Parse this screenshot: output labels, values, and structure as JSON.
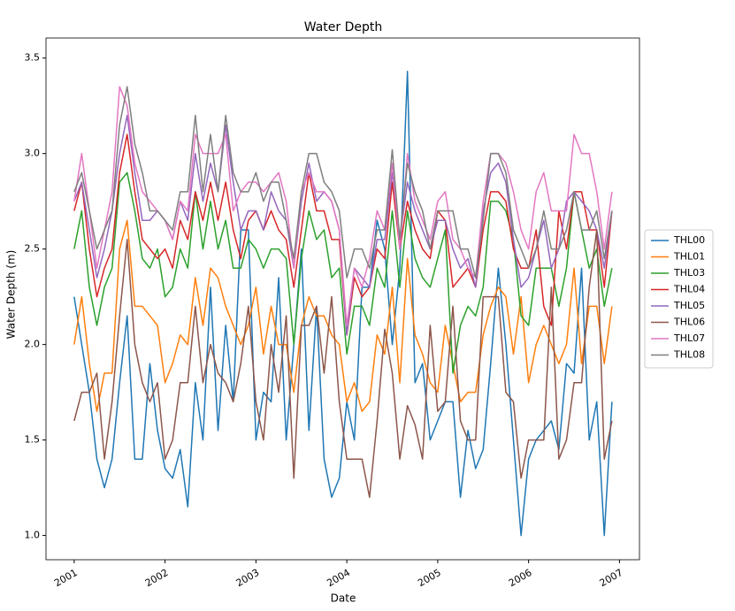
{
  "chart_data": {
    "type": "line",
    "title": "Water Depth",
    "x_label": "Date",
    "y_label": "Water Depth (m)",
    "x": [
      2001,
      2001.083,
      2001.167,
      2001.25,
      2001.333,
      2001.417,
      2001.5,
      2001.583,
      2001.667,
      2001.75,
      2001.833,
      2001.917,
      2002,
      2002.083,
      2002.167,
      2002.25,
      2002.333,
      2002.417,
      2002.5,
      2002.583,
      2002.667,
      2002.75,
      2002.833,
      2002.917,
      2003,
      2003.083,
      2003.167,
      2003.25,
      2003.333,
      2003.417,
      2003.5,
      2003.583,
      2003.667,
      2003.75,
      2003.833,
      2003.917,
      2004,
      2004.083,
      2004.167,
      2004.25,
      2004.333,
      2004.417,
      2004.5,
      2004.583,
      2004.667,
      2004.75,
      2004.833,
      2004.917,
      2005,
      2005.083,
      2005.167,
      2005.25,
      2005.333,
      2005.417,
      2005.5,
      2005.583,
      2005.667,
      2005.75,
      2005.833,
      2005.917,
      2006,
      2006.083,
      2006.167,
      2006.25,
      2006.333,
      2006.417,
      2006.5,
      2006.583,
      2006.667,
      2006.75,
      2006.833,
      2006.917
    ],
    "series": [
      {
        "name": "THL00",
        "color": "#1f77b4",
        "values": [
          2.25,
          2.0,
          1.75,
          1.4,
          1.25,
          1.4,
          1.8,
          2.15,
          1.4,
          1.4,
          1.9,
          1.55,
          1.35,
          1.3,
          1.45,
          1.15,
          1.8,
          1.5,
          2.3,
          1.55,
          2.1,
          1.7,
          2.6,
          2.6,
          1.5,
          1.75,
          1.7,
          2.35,
          1.5,
          2.0,
          2.5,
          1.55,
          2.2,
          1.4,
          1.2,
          1.3,
          1.7,
          1.5,
          2.3,
          2.3,
          2.65,
          2.5,
          2.0,
          2.4,
          3.43,
          1.8,
          1.9,
          1.5,
          1.6,
          1.7,
          1.7,
          1.2,
          1.55,
          1.35,
          1.45,
          1.9,
          2.4,
          2.0,
          1.5,
          1.0,
          1.4,
          1.5,
          1.55,
          1.6,
          1.45,
          1.9,
          1.85,
          2.4,
          1.5,
          1.7,
          1.0,
          1.7
        ]
      },
      {
        "name": "THL01",
        "color": "#ff7f0e",
        "values": [
          2.0,
          2.25,
          1.9,
          1.65,
          1.85,
          1.85,
          2.5,
          2.65,
          2.2,
          2.2,
          2.15,
          2.1,
          1.8,
          1.9,
          2.05,
          2.0,
          2.35,
          2.1,
          2.4,
          2.35,
          2.2,
          2.1,
          2.0,
          2.1,
          2.3,
          1.95,
          2.2,
          2.0,
          2.0,
          1.75,
          2.1,
          2.25,
          2.15,
          2.15,
          2.05,
          2.0,
          1.7,
          1.8,
          1.65,
          1.7,
          2.05,
          1.95,
          2.3,
          1.8,
          2.45,
          2.05,
          1.95,
          1.8,
          1.75,
          2.1,
          1.9,
          1.7,
          1.75,
          1.75,
          2.05,
          2.2,
          2.3,
          2.25,
          1.95,
          2.25,
          1.8,
          2.0,
          2.1,
          2.0,
          1.9,
          2.0,
          2.4,
          1.9,
          2.2,
          2.2,
          1.9,
          2.2
        ]
      },
      {
        "name": "THL03",
        "color": "#2ca02c",
        "values": [
          2.5,
          2.7,
          2.3,
          2.1,
          2.3,
          2.4,
          2.85,
          2.9,
          2.7,
          2.45,
          2.4,
          2.5,
          2.25,
          2.3,
          2.5,
          2.4,
          2.8,
          2.5,
          2.75,
          2.5,
          2.65,
          2.4,
          2.4,
          2.55,
          2.5,
          2.4,
          2.5,
          2.5,
          2.45,
          2.0,
          2.45,
          2.7,
          2.55,
          2.6,
          2.35,
          2.4,
          1.95,
          2.2,
          2.2,
          2.1,
          2.4,
          2.3,
          2.7,
          2.3,
          2.7,
          2.45,
          2.35,
          2.3,
          2.45,
          2.6,
          1.85,
          2.1,
          2.2,
          2.15,
          2.3,
          2.75,
          2.75,
          2.7,
          2.55,
          2.15,
          2.1,
          2.4,
          2.4,
          2.4,
          2.2,
          2.4,
          2.8,
          2.6,
          2.4,
          2.5,
          2.2,
          2.4
        ]
      },
      {
        "name": "THL04",
        "color": "#d62728",
        "values": [
          2.7,
          2.85,
          2.5,
          2.25,
          2.4,
          2.5,
          2.9,
          3.1,
          2.8,
          2.55,
          2.5,
          2.45,
          2.5,
          2.4,
          2.65,
          2.55,
          2.8,
          2.65,
          2.85,
          2.65,
          2.85,
          2.6,
          2.45,
          2.65,
          2.7,
          2.6,
          2.7,
          2.6,
          2.55,
          2.3,
          2.6,
          2.9,
          2.7,
          2.7,
          2.55,
          2.55,
          2.05,
          2.35,
          2.25,
          2.3,
          2.5,
          2.45,
          2.85,
          2.5,
          2.75,
          2.6,
          2.5,
          2.45,
          2.7,
          2.65,
          2.3,
          2.35,
          2.4,
          2.3,
          2.6,
          2.8,
          2.8,
          2.75,
          2.5,
          2.4,
          2.4,
          2.6,
          2.2,
          2.1,
          2.7,
          2.5,
          2.8,
          2.8,
          2.6,
          2.6,
          2.3,
          2.7
        ]
      },
      {
        "name": "THL05",
        "color": "#9467bd",
        "values": [
          2.75,
          2.85,
          2.6,
          2.35,
          2.5,
          2.7,
          3.0,
          3.2,
          2.9,
          2.65,
          2.65,
          2.7,
          2.65,
          2.55,
          2.75,
          2.65,
          3.0,
          2.75,
          2.95,
          2.8,
          3.15,
          2.85,
          2.6,
          2.7,
          2.7,
          2.6,
          2.8,
          2.7,
          2.65,
          2.4,
          2.75,
          2.95,
          2.75,
          2.8,
          2.75,
          2.6,
          2.05,
          2.4,
          2.35,
          2.3,
          2.55,
          2.55,
          2.9,
          2.55,
          2.85,
          2.7,
          2.6,
          2.5,
          2.65,
          2.65,
          2.5,
          2.4,
          2.45,
          2.3,
          2.7,
          2.9,
          2.95,
          2.85,
          2.55,
          2.3,
          2.35,
          2.5,
          2.65,
          2.4,
          2.5,
          2.75,
          2.8,
          2.75,
          2.7,
          2.6,
          2.4,
          2.7
        ]
      },
      {
        "name": "THL06",
        "color": "#8c564b",
        "values": [
          1.6,
          1.75,
          1.75,
          1.85,
          1.4,
          1.7,
          2.15,
          2.55,
          2.0,
          1.8,
          1.7,
          1.8,
          1.4,
          1.5,
          1.8,
          1.8,
          2.2,
          1.8,
          2.0,
          1.85,
          1.8,
          1.7,
          1.9,
          2.2,
          1.7,
          1.5,
          2.0,
          1.75,
          2.15,
          1.3,
          2.1,
          2.1,
          2.2,
          1.85,
          2.25,
          1.7,
          1.4,
          1.4,
          1.4,
          1.2,
          1.6,
          2.08,
          1.85,
          1.4,
          1.68,
          1.58,
          1.4,
          2.1,
          1.65,
          1.7,
          2.2,
          1.6,
          1.5,
          1.5,
          2.25,
          2.25,
          2.25,
          1.75,
          1.7,
          1.3,
          1.5,
          1.5,
          1.5,
          2.3,
          1.4,
          1.5,
          1.8,
          1.8,
          2.3,
          2.6,
          1.4,
          1.6
        ]
      },
      {
        "name": "THL07",
        "color": "#e377c2",
        "values": [
          2.75,
          3.0,
          2.7,
          2.4,
          2.6,
          2.8,
          3.35,
          3.25,
          2.95,
          2.8,
          2.75,
          2.7,
          2.65,
          2.55,
          2.75,
          2.7,
          3.1,
          3.0,
          3.0,
          3.0,
          3.1,
          2.7,
          2.8,
          2.85,
          2.85,
          2.8,
          2.85,
          2.9,
          2.75,
          2.4,
          2.8,
          2.9,
          2.8,
          2.8,
          2.75,
          2.6,
          2.1,
          2.4,
          2.3,
          2.45,
          2.7,
          2.6,
          2.95,
          2.5,
          3.0,
          2.75,
          2.65,
          2.55,
          2.75,
          2.8,
          2.55,
          2.5,
          2.4,
          2.35,
          2.75,
          3.0,
          3.0,
          2.95,
          2.8,
          2.6,
          2.5,
          2.8,
          2.9,
          2.7,
          2.7,
          2.7,
          3.1,
          3.0,
          3.0,
          2.8,
          2.5,
          2.8
        ]
      },
      {
        "name": "THL08",
        "color": "#7f7f7f",
        "values": [
          2.8,
          2.9,
          2.7,
          2.5,
          2.6,
          2.7,
          3.15,
          3.35,
          3.05,
          2.9,
          2.7,
          2.7,
          2.65,
          2.6,
          2.8,
          2.8,
          3.2,
          2.8,
          3.1,
          2.8,
          3.2,
          2.9,
          2.8,
          2.8,
          2.9,
          2.75,
          2.85,
          2.85,
          2.65,
          2.45,
          2.8,
          3.0,
          3.0,
          2.85,
          2.8,
          2.7,
          2.35,
          2.5,
          2.5,
          2.4,
          2.6,
          2.6,
          3.02,
          2.55,
          2.95,
          2.8,
          2.7,
          2.5,
          2.7,
          2.7,
          2.7,
          2.5,
          2.5,
          2.35,
          2.65,
          3.0,
          3.0,
          2.9,
          2.6,
          2.5,
          2.4,
          2.5,
          2.7,
          2.5,
          2.5,
          2.6,
          2.8,
          2.6,
          2.6,
          2.7,
          2.45,
          2.7
        ]
      }
    ],
    "xlim": [
      2000.69,
      2007.22
    ],
    "xticks": [
      2001,
      2002,
      2003,
      2004,
      2005,
      2006,
      2007
    ],
    "ylim": [
      0.873,
      3.605
    ],
    "yticks": [
      {
        "value": 1.0,
        "label": "1.0"
      },
      {
        "value": 1.5,
        "label": "1.5"
      },
      {
        "value": 2.0,
        "label": "2.0"
      },
      {
        "value": 2.5,
        "label": "2.5"
      },
      {
        "value": 3.0,
        "label": "3.0"
      },
      {
        "value": 3.5,
        "label": "3.5"
      }
    ],
    "legend": "right",
    "grid": false
  }
}
